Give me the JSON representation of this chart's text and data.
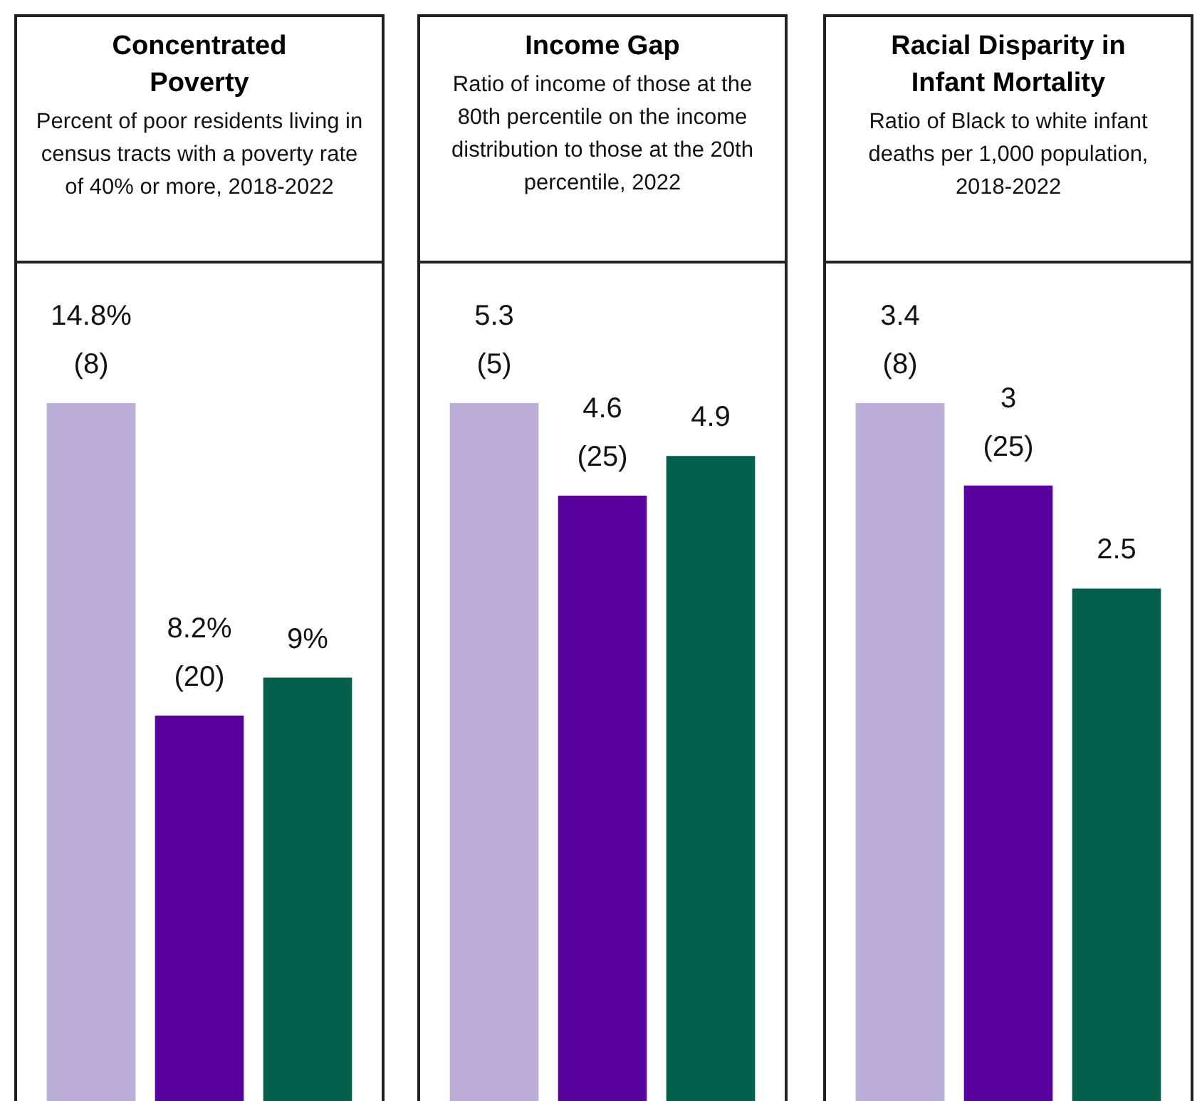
{
  "chart_data": [
    {
      "type": "bar",
      "title": "Concentrated Poverty",
      "subtitle": "Percent of poor residents living in census tracts with a poverty rate of 40% or more, 2018-2022",
      "categories": [
        null,
        null,
        null
      ],
      "values": [
        14.8,
        8.2,
        9
      ],
      "colors": [
        "#bcaed6",
        "#5a029e",
        "#00604b"
      ],
      "value_labels": [
        "14.8%\n(8)",
        "8.2%\n(20)",
        "9%"
      ]
    },
    {
      "type": "bar",
      "title": "Income Gap",
      "subtitle": "Ratio of income of those at the 80th percentile on the income distribution to those at the 20th percentile, 2022",
      "categories": [
        null,
        null,
        null
      ],
      "values": [
        5.3,
        4.6,
        4.9
      ],
      "colors": [
        "#bcaed6",
        "#5a029e",
        "#00604b"
      ],
      "value_labels": [
        "5.3\n(5)",
        "4.6\n(25)",
        "4.9"
      ]
    },
    {
      "type": "bar",
      "title": "Racial Disparity in Infant Mortality",
      "subtitle": "Ratio of Black to white infant deaths per 1,000 population, 2018-2022",
      "categories": [
        null,
        null,
        null
      ],
      "values": [
        3.4,
        3,
        2.5
      ],
      "colors": [
        "#bcaed6",
        "#5a029e",
        "#00604b"
      ],
      "value_labels": [
        "3.4\n(8)",
        "3\n(25)",
        "2.5"
      ]
    }
  ]
}
